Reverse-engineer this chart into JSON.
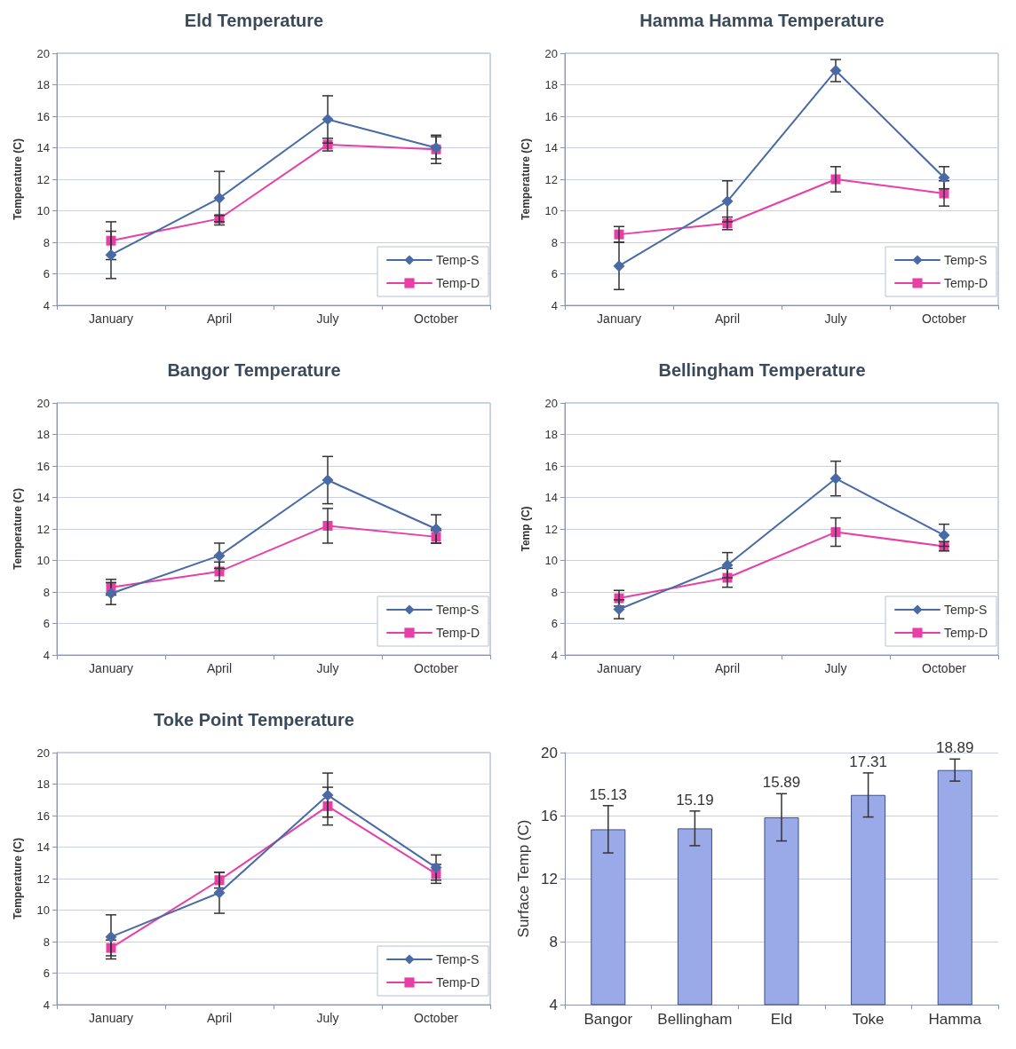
{
  "chart_data": [
    {
      "type": "line",
      "title": "Eld Temperature",
      "ylabel": "Temperature (C)",
      "categories": [
        "January",
        "April",
        "July",
        "October"
      ],
      "ylim": [
        4,
        20
      ],
      "yticks": [
        4,
        6,
        8,
        10,
        12,
        14,
        16,
        18,
        20
      ],
      "grid": "y",
      "legend": "bottom right",
      "series": [
        {
          "name": "Temp-S",
          "color": "#4a6aa5",
          "marker": "diamond",
          "values": [
            7.2,
            10.8,
            15.8,
            14.0
          ],
          "errors": [
            1.5,
            1.7,
            1.5,
            0.7
          ]
        },
        {
          "name": "Temp-D",
          "color": "#e83fa6",
          "marker": "square",
          "values": [
            8.1,
            9.5,
            14.2,
            13.9
          ],
          "errors": [
            1.2,
            0.2,
            0.4,
            0.9
          ]
        }
      ]
    },
    {
      "type": "line",
      "title": "Hamma Hamma Temperature",
      "ylabel": "Temperature (C)",
      "categories": [
        "January",
        "April",
        "July",
        "October"
      ],
      "ylim": [
        4,
        20
      ],
      "yticks": [
        4,
        6,
        8,
        10,
        12,
        14,
        16,
        18,
        20
      ],
      "grid": "y",
      "legend": "bottom right",
      "series": [
        {
          "name": "Temp-S",
          "color": "#4a6aa5",
          "marker": "diamond",
          "values": [
            6.5,
            10.6,
            18.9,
            12.1
          ],
          "errors": [
            1.5,
            1.3,
            0.7,
            0.7
          ]
        },
        {
          "name": "Temp-D",
          "color": "#e83fa6",
          "marker": "square",
          "values": [
            8.5,
            9.2,
            12.0,
            11.1
          ],
          "errors": [
            0.5,
            0.4,
            0.8,
            0.8
          ]
        }
      ]
    },
    {
      "type": "line",
      "title": "Bangor Temperature",
      "ylabel": "Temperature (C)",
      "categories": [
        "January",
        "April",
        "July",
        "October"
      ],
      "ylim": [
        4,
        20
      ],
      "yticks": [
        4,
        6,
        8,
        10,
        12,
        14,
        16,
        18,
        20
      ],
      "grid": "y",
      "legend": "bottom right",
      "series": [
        {
          "name": "Temp-S",
          "color": "#4a6aa5",
          "marker": "diamond",
          "values": [
            7.9,
            10.3,
            15.1,
            12.0
          ],
          "errors": [
            0.7,
            0.8,
            1.5,
            0.9
          ]
        },
        {
          "name": "Temp-D",
          "color": "#e83fa6",
          "marker": "square",
          "values": [
            8.3,
            9.3,
            12.2,
            11.5
          ],
          "errors": [
            0.5,
            0.6,
            1.1,
            0.4
          ]
        }
      ]
    },
    {
      "type": "line",
      "title": "Bellingham Temperature",
      "ylabel": "Temp (C)",
      "categories": [
        "January",
        "April",
        "July",
        "October"
      ],
      "ylim": [
        4,
        20
      ],
      "yticks": [
        4,
        6,
        8,
        10,
        12,
        14,
        16,
        18,
        20
      ],
      "grid": "y",
      "legend": "bottom right",
      "series": [
        {
          "name": "Temp-S",
          "color": "#4a6aa5",
          "marker": "diamond",
          "values": [
            6.9,
            9.7,
            15.2,
            11.6
          ],
          "errors": [
            0.6,
            0.8,
            1.1,
            0.7
          ]
        },
        {
          "name": "Temp-D",
          "color": "#e83fa6",
          "marker": "square",
          "values": [
            7.6,
            8.9,
            11.8,
            10.9
          ],
          "errors": [
            0.5,
            0.6,
            0.9,
            0.3
          ]
        }
      ]
    },
    {
      "type": "line",
      "title": "Toke Point Temperature",
      "ylabel": "Temperature (C)",
      "categories": [
        "January",
        "April",
        "July",
        "October"
      ],
      "ylim": [
        4,
        20
      ],
      "yticks": [
        4,
        6,
        8,
        10,
        12,
        14,
        16,
        18,
        20
      ],
      "grid": "y",
      "legend": "bottom right",
      "series": [
        {
          "name": "Temp-S",
          "color": "#4a6aa5",
          "marker": "diamond",
          "values": [
            8.3,
            11.1,
            17.3,
            12.7
          ],
          "errors": [
            1.4,
            1.3,
            1.4,
            0.8
          ]
        },
        {
          "name": "Temp-D",
          "color": "#e83fa6",
          "marker": "square",
          "values": [
            7.6,
            11.9,
            16.6,
            12.3
          ],
          "errors": [
            0.5,
            0.5,
            1.2,
            0.6
          ]
        }
      ]
    },
    {
      "type": "bar",
      "ylabel": "Surface Temp (C)",
      "categories": [
        "Bangor",
        "Bellingham",
        "Eld",
        "Toke",
        "Hamma"
      ],
      "ylim": [
        4,
        20
      ],
      "yticks": [
        4,
        8,
        12,
        16,
        20
      ],
      "grid": "y",
      "data_labels": true,
      "color": "#9aa9e8",
      "values": [
        15.13,
        15.19,
        15.89,
        17.31,
        18.89
      ],
      "errors": [
        1.5,
        1.1,
        1.5,
        1.4,
        0.7
      ]
    }
  ]
}
